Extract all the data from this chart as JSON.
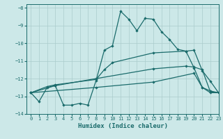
{
  "xlabel": "Humidex (Indice chaleur)",
  "background_color": "#cce8e8",
  "grid_color": "#aacccc",
  "line_color": "#1a6b6b",
  "xlim": [
    -0.5,
    23
  ],
  "ylim": [
    -14.0,
    -7.8
  ],
  "yticks": [
    -14,
    -13,
    -12,
    -11,
    -10,
    -9,
    -8
  ],
  "xticks": [
    0,
    1,
    2,
    3,
    4,
    5,
    6,
    7,
    8,
    9,
    10,
    11,
    12,
    13,
    14,
    15,
    16,
    17,
    18,
    19,
    20,
    21,
    22,
    23
  ],
  "series1": [
    [
      0,
      -12.8
    ],
    [
      1,
      -13.3
    ],
    [
      2,
      -12.5
    ],
    [
      3,
      -12.4
    ],
    [
      4,
      -13.5
    ],
    [
      5,
      -13.5
    ],
    [
      6,
      -13.4
    ],
    [
      7,
      -13.5
    ],
    [
      8,
      -12.1
    ],
    [
      9,
      -10.4
    ],
    [
      10,
      -10.15
    ],
    [
      11,
      -8.2
    ],
    [
      12,
      -8.65
    ],
    [
      13,
      -9.3
    ],
    [
      14,
      -8.6
    ],
    [
      15,
      -8.65
    ],
    [
      16,
      -9.35
    ],
    [
      17,
      -9.8
    ],
    [
      18,
      -10.35
    ],
    [
      19,
      -10.45
    ],
    [
      20,
      -11.4
    ],
    [
      21,
      -12.5
    ],
    [
      22,
      -12.8
    ],
    [
      23,
      -12.8
    ]
  ],
  "series2": [
    [
      0,
      -12.8
    ],
    [
      2,
      -12.45
    ],
    [
      3,
      -12.35
    ],
    [
      8,
      -12.05
    ],
    [
      9,
      -11.5
    ],
    [
      10,
      -11.1
    ],
    [
      15,
      -10.55
    ],
    [
      19,
      -10.45
    ],
    [
      20,
      -10.4
    ],
    [
      21,
      -11.55
    ],
    [
      22,
      -12.15
    ],
    [
      23,
      -12.8
    ]
  ],
  "series3": [
    [
      0,
      -12.8
    ],
    [
      3,
      -12.4
    ],
    [
      8,
      -12.0
    ],
    [
      15,
      -11.45
    ],
    [
      19,
      -11.3
    ],
    [
      20,
      -11.35
    ],
    [
      21,
      -11.5
    ],
    [
      22,
      -12.75
    ],
    [
      23,
      -12.8
    ]
  ],
  "series4": [
    [
      0,
      -12.8
    ],
    [
      8,
      -12.5
    ],
    [
      15,
      -12.2
    ],
    [
      20,
      -11.7
    ],
    [
      21,
      -12.5
    ],
    [
      22,
      -12.7
    ],
    [
      23,
      -12.8
    ]
  ]
}
